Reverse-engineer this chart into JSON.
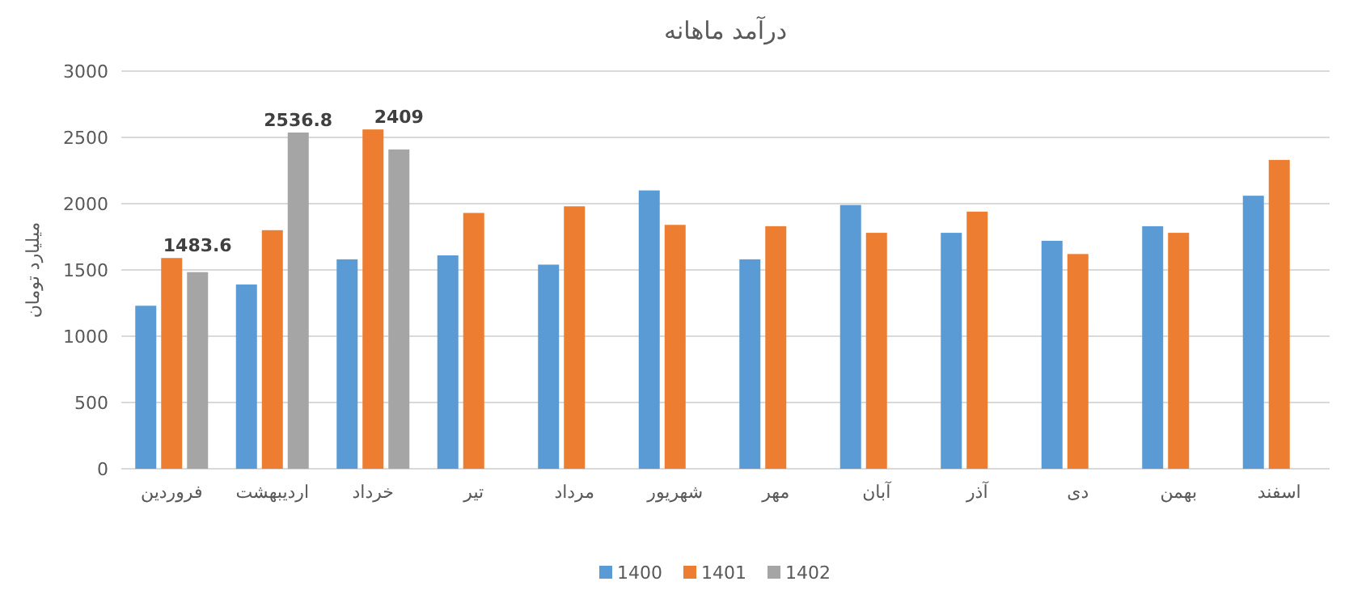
{
  "chart_data": {
    "type": "bar",
    "title": "درآمد ماهانه",
    "ylabel": "میلیارد تومان",
    "categories": [
      "فروردین",
      "اردیبهشت",
      "خرداد",
      "تیر",
      "مرداد",
      "شهریور",
      "مهر",
      "آبان",
      "آذر",
      "دی",
      "بهمن",
      "اسفند"
    ],
    "series": [
      {
        "name": "1400",
        "color": "#5b9bd5",
        "values": [
          1230,
          1390,
          1580,
          1610,
          1540,
          2100,
          1580,
          1990,
          1780,
          1720,
          1830,
          2060
        ]
      },
      {
        "name": "1401",
        "color": "#ed7d31",
        "values": [
          1590,
          1800,
          2560,
          1930,
          1980,
          1840,
          1830,
          1780,
          1940,
          1620,
          1780,
          2330
        ]
      },
      {
        "name": "1402",
        "color": "#a5a5a5",
        "values": [
          1483.6,
          2536.8,
          2409,
          null,
          null,
          null,
          null,
          null,
          null,
          null,
          null,
          null
        ],
        "value_labels": [
          "1483.6",
          "2536.8",
          "2409",
          null,
          null,
          null,
          null,
          null,
          null,
          null,
          null,
          null
        ]
      }
    ],
    "ylim": [
      0,
      3000
    ],
    "yticks": [
      0,
      500,
      1000,
      1500,
      2000,
      2500,
      3000
    ],
    "grid": "y",
    "legend": "bottom"
  }
}
